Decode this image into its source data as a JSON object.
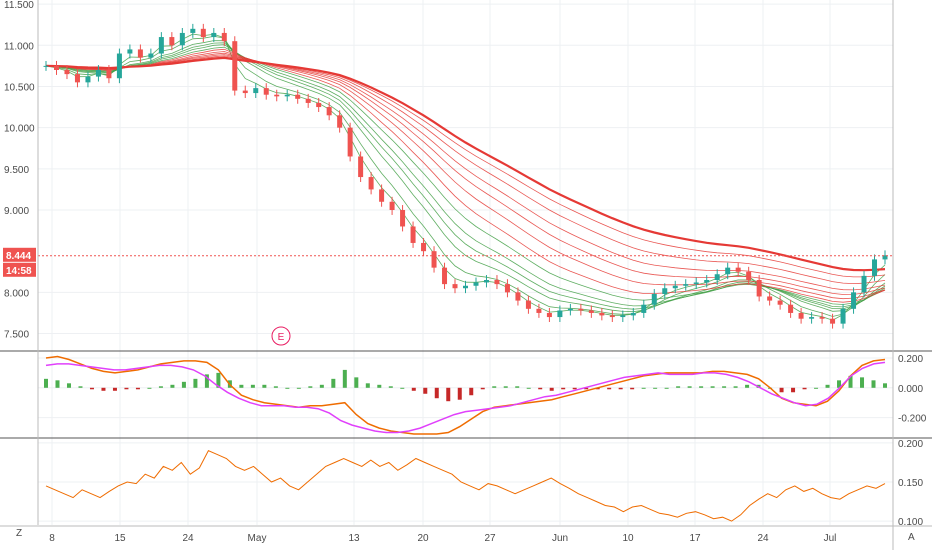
{
  "chart_data": [
    {
      "type": "candlestick",
      "panel": "price",
      "y_ticks": [
        "11.500",
        "11.000",
        "10.500",
        "10.000",
        "9.500",
        "9.000",
        "8.000",
        "7.500"
      ],
      "ylim": [
        7.3,
        11.55
      ],
      "x_tick_labels": [
        "8",
        "15",
        "24",
        "May",
        "13",
        "20",
        "27",
        "Jun",
        "10",
        "17",
        "24",
        "Jul"
      ],
      "last_price": "8.444",
      "countdown": "14:58",
      "event_marker": "E",
      "close_series": [
        10.75,
        10.7,
        10.65,
        10.55,
        10.62,
        10.7,
        10.6,
        10.9,
        10.95,
        10.85,
        10.9,
        11.1,
        11.0,
        11.15,
        11.2,
        11.1,
        11.15,
        11.05,
        10.45,
        10.42,
        10.48,
        10.4,
        10.38,
        10.4,
        10.35,
        10.3,
        10.25,
        10.15,
        10.0,
        9.65,
        9.4,
        9.25,
        9.1,
        9.0,
        8.8,
        8.6,
        8.5,
        8.3,
        8.1,
        8.05,
        8.08,
        8.12,
        8.15,
        8.1,
        8.0,
        7.9,
        7.8,
        7.75,
        7.7,
        7.78,
        7.8,
        7.78,
        7.75,
        7.72,
        7.7,
        7.72,
        7.75,
        7.85,
        7.98,
        8.05,
        8.08,
        8.1,
        8.12,
        8.15,
        8.22,
        8.3,
        8.25,
        8.15,
        7.95,
        7.9,
        7.85,
        7.75,
        7.68,
        7.7,
        7.68,
        7.62,
        7.8,
        8.0,
        8.2,
        8.4,
        8.45
      ],
      "series": [
        {
          "name": "",
          "color": "#e53935"
        },
        {
          "name": "",
          "color": "#43a047"
        }
      ]
    },
    {
      "type": "oscillator",
      "panel": "middle",
      "y_ticks": [
        "0.200",
        "0.000",
        "-0.200"
      ],
      "ylim": [
        -0.33,
        0.24
      ],
      "line_a": [
        0.2,
        0.21,
        0.19,
        0.16,
        0.13,
        0.11,
        0.1,
        0.11,
        0.12,
        0.14,
        0.16,
        0.17,
        0.18,
        0.18,
        0.17,
        0.12,
        0.02,
        -0.05,
        -0.08,
        -0.1,
        -0.11,
        -0.12,
        -0.13,
        -0.12,
        -0.12,
        -0.11,
        -0.1,
        -0.18,
        -0.24,
        -0.27,
        -0.29,
        -0.3,
        -0.31,
        -0.31,
        -0.31,
        -0.3,
        -0.26,
        -0.21,
        -0.16,
        -0.13,
        -0.12,
        -0.11,
        -0.1,
        -0.09,
        -0.08,
        -0.06,
        -0.04,
        -0.02,
        0.0,
        0.02,
        0.04,
        0.06,
        0.08,
        0.09,
        0.1,
        0.1,
        0.1,
        0.1,
        0.11,
        0.11,
        0.1,
        0.09,
        0.06,
        0.0,
        -0.07,
        -0.1,
        -0.11,
        -0.12,
        -0.09,
        -0.02,
        0.08,
        0.15,
        0.18,
        0.19
      ],
      "line_b": [
        0.15,
        0.16,
        0.16,
        0.15,
        0.14,
        0.13,
        0.12,
        0.12,
        0.13,
        0.14,
        0.15,
        0.15,
        0.14,
        0.12,
        0.08,
        0.02,
        -0.03,
        -0.07,
        -0.1,
        -0.12,
        -0.12,
        -0.12,
        -0.13,
        -0.13,
        -0.14,
        -0.17,
        -0.22,
        -0.25,
        -0.27,
        -0.29,
        -0.3,
        -0.3,
        -0.29,
        -0.27,
        -0.24,
        -0.21,
        -0.18,
        -0.16,
        -0.15,
        -0.14,
        -0.13,
        -0.12,
        -0.1,
        -0.08,
        -0.06,
        -0.05,
        -0.03,
        -0.01,
        0.01,
        0.03,
        0.05,
        0.07,
        0.08,
        0.09,
        0.1,
        0.09,
        0.09,
        0.09,
        0.1,
        0.1,
        0.09,
        0.07,
        0.04,
        0.0,
        -0.04,
        -0.07,
        -0.1,
        -0.12,
        -0.11,
        -0.07,
        0.0,
        0.08,
        0.13,
        0.16,
        0.17
      ],
      "histogram": [
        0.06,
        0.05,
        0.03,
        0.01,
        -0.01,
        -0.02,
        -0.02,
        -0.01,
        -0.01,
        0.0,
        0.01,
        0.02,
        0.04,
        0.06,
        0.09,
        0.1,
        0.05,
        0.02,
        0.02,
        0.02,
        0.01,
        0.0,
        0.0,
        0.01,
        0.02,
        0.06,
        0.12,
        0.07,
        0.03,
        0.02,
        0.01,
        0.0,
        -0.02,
        -0.04,
        -0.07,
        -0.09,
        -0.08,
        -0.05,
        -0.01,
        0.01,
        0.01,
        0.01,
        0.0,
        -0.01,
        -0.02,
        -0.01,
        -0.01,
        -0.01,
        -0.01,
        -0.01,
        -0.01,
        -0.01,
        0.0,
        0.0,
        0.0,
        0.01,
        0.01,
        0.01,
        0.01,
        0.01,
        0.01,
        0.02,
        0.02,
        0.0,
        -0.03,
        -0.03,
        -0.01,
        0.0,
        0.02,
        0.05,
        0.08,
        0.07,
        0.05,
        0.03
      ]
    },
    {
      "type": "line",
      "panel": "bottom",
      "y_ticks": [
        "0.200",
        "0.150",
        "0.100"
      ],
      "ylim": [
        0.095,
        0.205
      ],
      "values": [
        0.145,
        0.14,
        0.135,
        0.13,
        0.14,
        0.135,
        0.13,
        0.138,
        0.145,
        0.15,
        0.148,
        0.16,
        0.155,
        0.17,
        0.165,
        0.175,
        0.16,
        0.168,
        0.19,
        0.185,
        0.18,
        0.17,
        0.165,
        0.17,
        0.16,
        0.15,
        0.155,
        0.145,
        0.14,
        0.15,
        0.16,
        0.17,
        0.175,
        0.18,
        0.175,
        0.17,
        0.178,
        0.17,
        0.175,
        0.165,
        0.172,
        0.18,
        0.175,
        0.17,
        0.165,
        0.16,
        0.15,
        0.145,
        0.14,
        0.148,
        0.145,
        0.14,
        0.135,
        0.14,
        0.145,
        0.15,
        0.155,
        0.148,
        0.142,
        0.135,
        0.13,
        0.125,
        0.12,
        0.118,
        0.112,
        0.118,
        0.12,
        0.115,
        0.11,
        0.108,
        0.105,
        0.11,
        0.112,
        0.108,
        0.103,
        0.105,
        0.1,
        0.108,
        0.12,
        0.128,
        0.135,
        0.13,
        0.14,
        0.145,
        0.138,
        0.142,
        0.135,
        0.13,
        0.128,
        0.135,
        0.14,
        0.145,
        0.142,
        0.148
      ],
      "color": "#ef6c00"
    }
  ],
  "ui": {
    "left_corner_label": "Z",
    "right_corner_label": "A"
  }
}
